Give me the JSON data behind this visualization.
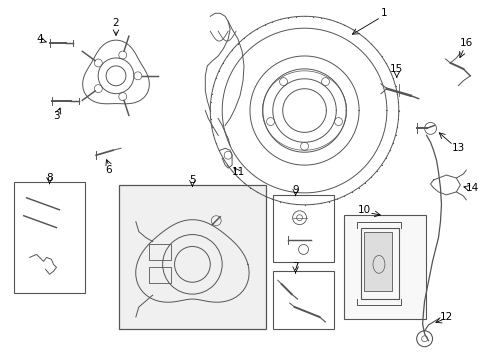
{
  "bg_color": "#ffffff",
  "line_color": "#555555",
  "label_color": "#000000",
  "figsize": [
    4.9,
    3.6
  ],
  "dpi": 100,
  "box_fill": "#f0f0f0",
  "label_fontsize": 7.5
}
